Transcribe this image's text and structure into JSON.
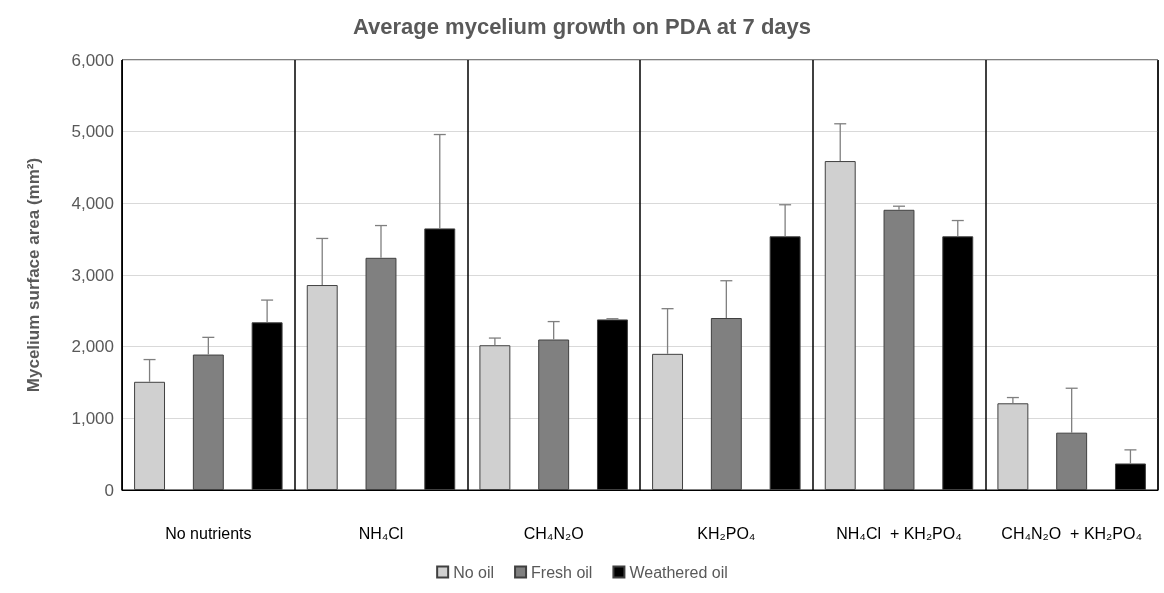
{
  "chart_data": {
    "type": "bar",
    "title": "Average mycelium growth on PDA at 7 days",
    "ylabel": "Mycelium surface area (mm²)",
    "categories": [
      "No nutrients",
      "NH₄Cl",
      "CH₄N₂O",
      "KH₂PO₄",
      "NH₄Cl  + KH₂PO₄",
      "CH₄N₂O  + KH₂PO₄"
    ],
    "series": [
      {
        "name": "No oil",
        "color": "#d0d0d0",
        "values": [
          1510,
          2860,
          2020,
          1900,
          4590,
          1210
        ],
        "errors": [
          [
            1510,
            1820
          ],
          [
            2860,
            3510
          ],
          [
            2020,
            2120
          ],
          [
            1900,
            2530
          ],
          [
            4590,
            5110
          ],
          [
            1210,
            1290
          ]
        ]
      },
      {
        "name": "Fresh oil",
        "color": "#808080",
        "values": [
          1890,
          3240,
          2100,
          2400,
          3910,
          800
        ],
        "errors": [
          [
            1890,
            2130
          ],
          [
            3240,
            3690
          ],
          [
            2100,
            2350
          ],
          [
            2400,
            2920
          ],
          [
            3910,
            3960
          ],
          [
            800,
            1420
          ]
        ]
      },
      {
        "name": "Weathered oil",
        "color": "#000000",
        "values": [
          2340,
          3650,
          2380,
          3540,
          3540,
          370
        ],
        "errors": [
          [
            2340,
            2650
          ],
          [
            3650,
            4960
          ],
          [
            2380,
            2390
          ],
          [
            3540,
            3980
          ],
          [
            3540,
            3760
          ],
          [
            370,
            560
          ]
        ]
      }
    ],
    "ylim": [
      0,
      6000
    ],
    "yticks": [
      0,
      {
        "value": 1000,
        "label": "1,000"
      },
      {
        "value": 2000,
        "label": "2,000"
      },
      {
        "value": 3000,
        "label": "3,000"
      },
      {
        "value": 4000,
        "label": "4,000"
      },
      {
        "value": 5000,
        "label": "5,000"
      },
      {
        "value": 6000,
        "label": "6,000"
      }
    ],
    "grid": true,
    "legend": "bottom"
  }
}
